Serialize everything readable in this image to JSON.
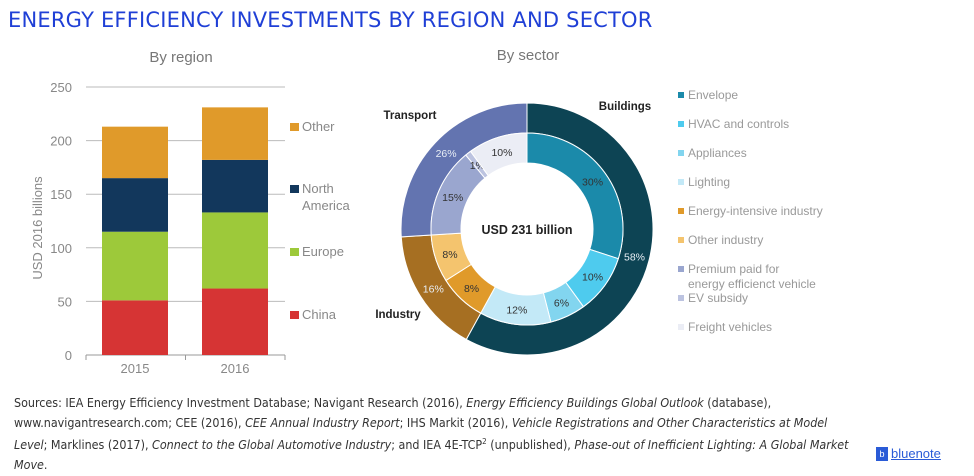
{
  "title": "ENERGY EFFICIENCY INVESTMENTS BY REGION AND SECTOR",
  "chart_data": [
    {
      "type": "bar",
      "stacked": true,
      "title": "By region",
      "xlabel": "",
      "ylabel": "USD 2016 billions",
      "ylim": [
        0,
        250
      ],
      "yticks": [
        0,
        50,
        100,
        150,
        200,
        250
      ],
      "grid": true,
      "legend_position": "right",
      "categories": [
        "2015",
        "2016"
      ],
      "series": [
        {
          "name": "China",
          "color": "#d63434",
          "values": [
            51,
            62
          ]
        },
        {
          "name": "Europe",
          "color": "#9dc93a",
          "values": [
            64,
            71
          ]
        },
        {
          "name": "North America",
          "color": "#12375c",
          "values": [
            50,
            49
          ]
        },
        {
          "name": "Other",
          "color": "#e09a2a",
          "values": [
            48,
            49
          ]
        }
      ],
      "legend": [
        "Other",
        "North America",
        "Europe",
        "China"
      ]
    },
    {
      "type": "pie",
      "title": "By sector",
      "center_label": "USD 231 billion",
      "outer": [
        {
          "name": "Buildings",
          "value": 58,
          "label": "58%",
          "color": "#0d4454"
        },
        {
          "name": "Industry",
          "value": 16,
          "label": "16%",
          "color": "#a66f22"
        },
        {
          "name": "Transport",
          "value": 26,
          "label": "26%",
          "color": "#6374b0"
        }
      ],
      "inner": [
        {
          "name": "Envelope",
          "value": 30,
          "label": "30%",
          "color": "#1b8aaa"
        },
        {
          "name": "HVAC and controls",
          "value": 10,
          "label": "10%",
          "color": "#4ecbee"
        },
        {
          "name": "Appliances",
          "value": 6,
          "label": "6%",
          "color": "#82d5ef"
        },
        {
          "name": "Lighting",
          "value": 12,
          "label": "12%",
          "color": "#c3e9f7"
        },
        {
          "name": "Energy-intensive industry",
          "value": 8,
          "label": "8%",
          "color": "#e09a2a"
        },
        {
          "name": "Other industry",
          "value": 8,
          "label": "8%",
          "color": "#f4c46e"
        },
        {
          "name": "Premium paid for energy efficienct vehicle",
          "value": 15,
          "label": "15%",
          "color": "#9aa6cf"
        },
        {
          "name": "EV subsidy",
          "value": 1,
          "label": "1%",
          "color": "#bcc3e0"
        },
        {
          "name": "Freight vehicles",
          "value": 10,
          "label": "10%",
          "color": "#ebedf5"
        }
      ],
      "legend_position": "right"
    }
  ],
  "sources": [
    {
      "t": "Sources: IEA Energy Efficiency Investment Database; Navigant Research (2016), ",
      "i": false
    },
    {
      "t": "Energy Efficiency Buildings Global Outlook",
      "i": true
    },
    {
      "t": " (database), www.navigantresearch.com; CEE (2016), ",
      "i": false
    },
    {
      "t": "CEE Annual Industry Report",
      "i": true
    },
    {
      "t": "; IHS Markit (2016), ",
      "i": false
    },
    {
      "t": "Vehicle Registrations and Other Characteristics at Model Level",
      "i": true
    },
    {
      "t": "; Marklines (2017), ",
      "i": false
    },
    {
      "t": "Connect to the Global Automotive Industry",
      "i": true
    },
    {
      "t": "; and IEA 4E-TCP",
      "i": false
    },
    {
      "t": "2",
      "sup": true
    },
    {
      "t": " (unpublished), ",
      "i": false
    },
    {
      "t": "Phase-out of Inefficient Lighting: A Global Market Move",
      "i": true
    },
    {
      "t": ".",
      "i": false
    }
  ],
  "logo": {
    "text": "bluenote",
    "glyph": "b"
  }
}
